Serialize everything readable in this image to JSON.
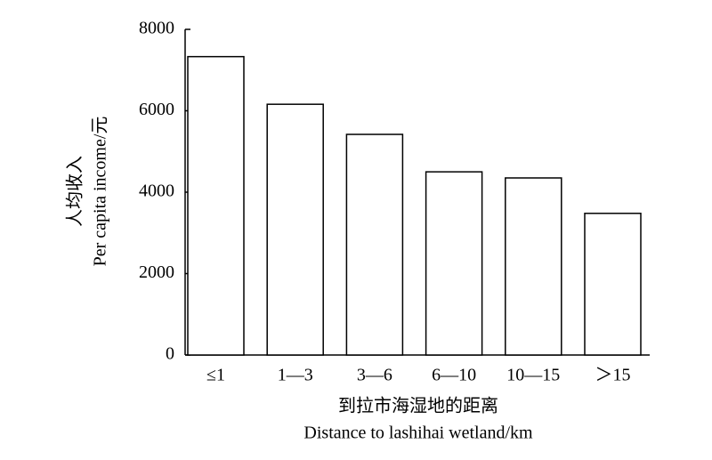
{
  "chart_data": {
    "type": "bar",
    "ylabel": [
      "人均收入",
      "Per capita income/元"
    ],
    "xlabel": [
      "到拉市海湿地的距离",
      "Distance to lashihai wetland/km"
    ],
    "categories": [
      "≤1",
      "1—3",
      "3—6",
      "6—10",
      "10—15",
      "＞15"
    ],
    "values": [
      7330,
      6160,
      5420,
      4500,
      4350,
      3480
    ],
    "color": "#ffffff",
    "ylim": [
      0,
      8000
    ],
    "yticks": [
      0,
      2000,
      4000,
      6000,
      8000
    ],
    "grid": false
  }
}
